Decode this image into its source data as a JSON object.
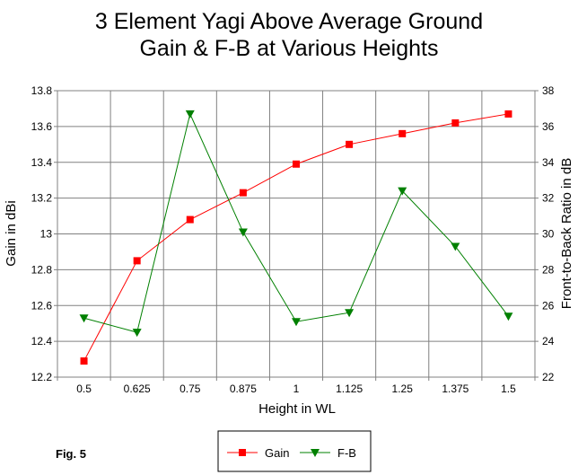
{
  "chart_data": {
    "type": "line",
    "title_lines": [
      "3 Element Yagi Above Average Ground",
      "Gain & F-B at Various Heights"
    ],
    "xlabel": "Height in WL",
    "ylabel": "Gain in dBi",
    "y2label": "Front-to-Back Ratio in dB",
    "x_categories": [
      "0.5",
      "0.625",
      "0.75",
      "0.875",
      "1",
      "1.125",
      "1.25",
      "1.375",
      "1.5"
    ],
    "y_ticks": [
      "12.2",
      "12.4",
      "12.6",
      "12.8",
      "13",
      "13.2",
      "13.4",
      "13.6",
      "13.8"
    ],
    "y2_ticks": [
      "22",
      "24",
      "26",
      "28",
      "30",
      "32",
      "34",
      "36",
      "38"
    ],
    "ylim": [
      12.2,
      13.8
    ],
    "y2lim": [
      22,
      38
    ],
    "grid": true,
    "legend_position": "bottom-center",
    "series": [
      {
        "name": "Gain",
        "axis": "left",
        "color": "#ff0000",
        "marker": "square",
        "values": [
          12.29,
          12.85,
          13.08,
          13.23,
          13.39,
          13.5,
          13.56,
          13.62,
          13.67
        ]
      },
      {
        "name": "F-B",
        "axis": "right",
        "color": "#008000",
        "marker": "triangle-down",
        "values": [
          25.3,
          24.5,
          36.7,
          30.1,
          25.1,
          25.6,
          32.4,
          29.3,
          25.4
        ]
      }
    ],
    "annotation": "Fig. 5"
  }
}
